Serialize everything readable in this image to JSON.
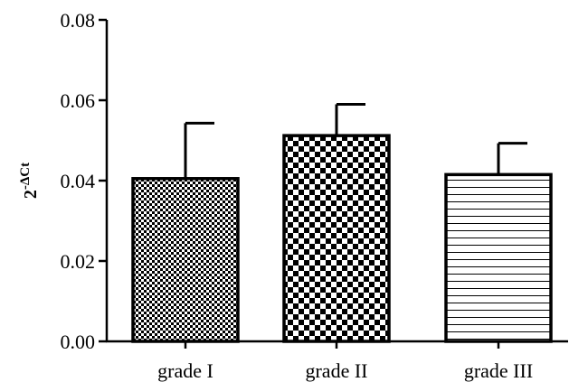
{
  "chart_data": {
    "type": "bar",
    "title": "",
    "xlabel": "",
    "ylabel": {
      "base": "2",
      "superscript": "-ΔCt"
    },
    "ylim": [
      0,
      0.08
    ],
    "y_ticks": [
      "0.00",
      "0.02",
      "0.04",
      "0.06",
      "0.08"
    ],
    "categories": [
      "grade I",
      "grade II",
      "grade III"
    ],
    "values": [
      0.0405,
      0.0512,
      0.0415
    ],
    "error_upper": [
      0.0138,
      0.0078,
      0.0078
    ],
    "bar_patterns": [
      "fine-checker",
      "coarse-checker",
      "horizontal-lines"
    ],
    "grid": false,
    "legend": "none"
  }
}
